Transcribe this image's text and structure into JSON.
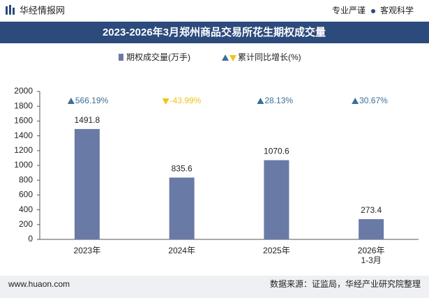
{
  "header": {
    "brand": "华经情报网",
    "slogan_left": "专业严谨",
    "slogan_right": "客观科学"
  },
  "chart_data": {
    "type": "bar",
    "title": "2023-2026年3月郑州商品交易所花生期权成交量",
    "categories": [
      "2023年",
      "2024年",
      "2025年",
      "2026年\n1-3月"
    ],
    "series": [
      {
        "name": "期权成交量(万手)",
        "color": "#6a7aa6",
        "values": [
          1491.8,
          835.6,
          1070.6,
          273.4
        ]
      }
    ],
    "growth": {
      "name": "累计同比增长(%)",
      "up_color": "#3b6f96",
      "down_color": "#f0c419",
      "values": [
        566.19,
        -43.99,
        28.13,
        30.67
      ],
      "value_labels": [
        "566.19%",
        "-43.99%",
        "28.13%",
        "30.67%"
      ]
    },
    "ylim": [
      0,
      2000
    ],
    "yticks": [
      0,
      200,
      400,
      600,
      800,
      1000,
      1200,
      1400,
      1600,
      1800,
      2000
    ]
  },
  "footer": {
    "website": "www.huaon.com",
    "source": "数据来源：证监局，华经产业研究院整理"
  }
}
